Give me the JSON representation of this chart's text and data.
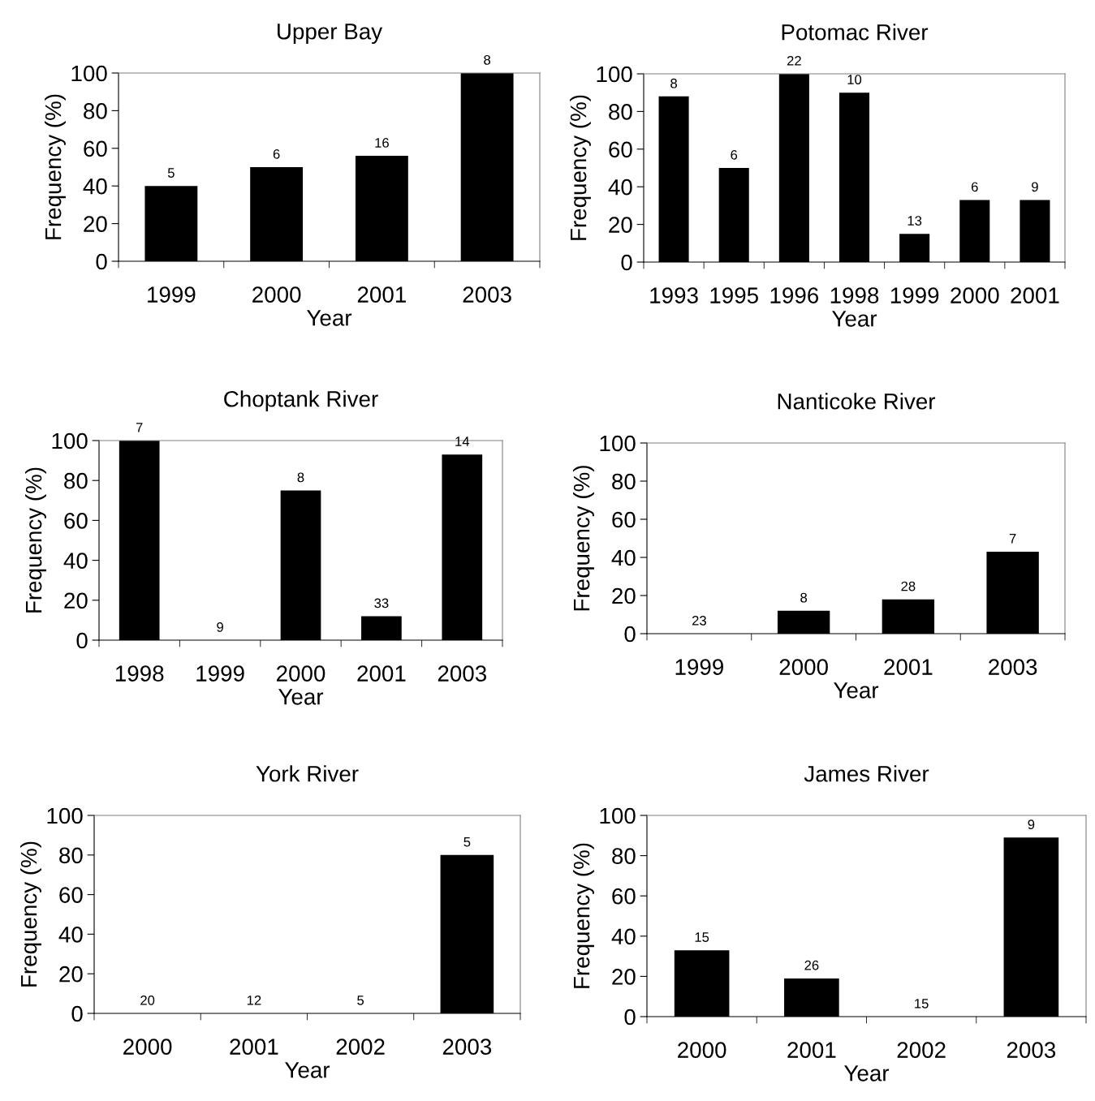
{
  "chart_data": [
    {
      "type": "bar",
      "title": "Upper Bay",
      "xlabel": "Year",
      "ylabel": "Frequency (%)",
      "categories": [
        "1999",
        "2000",
        "2001",
        "2003"
      ],
      "values": [
        40,
        50,
        56,
        100
      ],
      "color": "#000000",
      "ylim": [
        0,
        100
      ],
      "yticks": [
        0,
        20,
        40,
        60,
        80,
        100
      ],
      "grid": false,
      "annotations": [
        {
          "text": "5",
          "x": "1999",
          "y": 40
        },
        {
          "text": "6",
          "x": "2000",
          "y": 50
        },
        {
          "text": "16",
          "x": "2001",
          "y": 56
        },
        {
          "text": "8",
          "x": "2003",
          "y": 100
        }
      ]
    },
    {
      "type": "bar",
      "title": "Potomac River",
      "xlabel": "Year",
      "ylabel": "Frequency (%)",
      "categories": [
        "1993",
        "1995",
        "1996",
        "1998",
        "1999",
        "2000",
        "2001"
      ],
      "values": [
        88,
        50,
        100,
        90,
        15,
        33,
        33
      ],
      "color": "#000000",
      "ylim": [
        0,
        100
      ],
      "yticks": [
        0,
        20,
        40,
        60,
        80,
        100
      ],
      "grid": false,
      "annotations": [
        {
          "text": "8",
          "x": "1993",
          "y": 88
        },
        {
          "text": "6",
          "x": "1995",
          "y": 50
        },
        {
          "text": "22",
          "x": "1996",
          "y": 100
        },
        {
          "text": "10",
          "x": "1998",
          "y": 90
        },
        {
          "text": "13",
          "x": "1999",
          "y": 15
        },
        {
          "text": "6",
          "x": "2000",
          "y": 33
        },
        {
          "text": "9",
          "x": "2001",
          "y": 33
        }
      ]
    },
    {
      "type": "bar",
      "title": "Choptank River",
      "xlabel": "Year",
      "ylabel": "Frequency (%)",
      "categories": [
        "1998",
        "1999",
        "2000",
        "2001",
        "2003"
      ],
      "values": [
        100,
        0,
        75,
        12,
        93
      ],
      "color": "#000000",
      "ylim": [
        0,
        100
      ],
      "yticks": [
        0,
        20,
        40,
        60,
        80,
        100
      ],
      "grid": false,
      "annotations": [
        {
          "text": "7",
          "x": "1998",
          "y": 100
        },
        {
          "text": "9",
          "x": "1999",
          "y": 0
        },
        {
          "text": "8",
          "x": "2000",
          "y": 75
        },
        {
          "text": "33",
          "x": "2001",
          "y": 12
        },
        {
          "text": "14",
          "x": "2003",
          "y": 93
        }
      ]
    },
    {
      "type": "bar",
      "title": "Nanticoke River",
      "xlabel": "Year",
      "ylabel": "Frequency (%)",
      "categories": [
        "1999",
        "2000",
        "2001",
        "2003"
      ],
      "values": [
        0,
        12,
        18,
        43
      ],
      "color": "#000000",
      "ylim": [
        0,
        100
      ],
      "yticks": [
        0,
        20,
        40,
        60,
        80,
        100
      ],
      "grid": false,
      "annotations": [
        {
          "text": "23",
          "x": "1999",
          "y": 0
        },
        {
          "text": "8",
          "x": "2000",
          "y": 12
        },
        {
          "text": "28",
          "x": "2001",
          "y": 18
        },
        {
          "text": "7",
          "x": "2003",
          "y": 43
        }
      ]
    },
    {
      "type": "bar",
      "title": "York River",
      "xlabel": "Year",
      "ylabel": "Frequency (%)",
      "categories": [
        "2000",
        "2001",
        "2002",
        "2003"
      ],
      "values": [
        0,
        0,
        0,
        80
      ],
      "color": "#000000",
      "ylim": [
        0,
        100
      ],
      "yticks": [
        0,
        20,
        40,
        60,
        80,
        100
      ],
      "grid": false,
      "annotations": [
        {
          "text": "20",
          "x": "2000",
          "y": 0
        },
        {
          "text": "12",
          "x": "2001",
          "y": 0
        },
        {
          "text": "5",
          "x": "2002",
          "y": 0
        },
        {
          "text": "5",
          "x": "2003",
          "y": 80
        }
      ]
    },
    {
      "type": "bar",
      "title": "James River",
      "xlabel": "Year",
      "ylabel": "Frequency (%)",
      "categories": [
        "2000",
        "2001",
        "2002",
        "2003"
      ],
      "values": [
        33,
        19,
        0,
        89
      ],
      "color": "#000000",
      "ylim": [
        0,
        100
      ],
      "yticks": [
        0,
        20,
        40,
        60,
        80,
        100
      ],
      "grid": false,
      "annotations": [
        {
          "text": "15",
          "x": "2000",
          "y": 33
        },
        {
          "text": "26",
          "x": "2001",
          "y": 19
        },
        {
          "text": "15",
          "x": "2002",
          "y": 0
        },
        {
          "text": "9",
          "x": "2003",
          "y": 89
        }
      ]
    }
  ]
}
